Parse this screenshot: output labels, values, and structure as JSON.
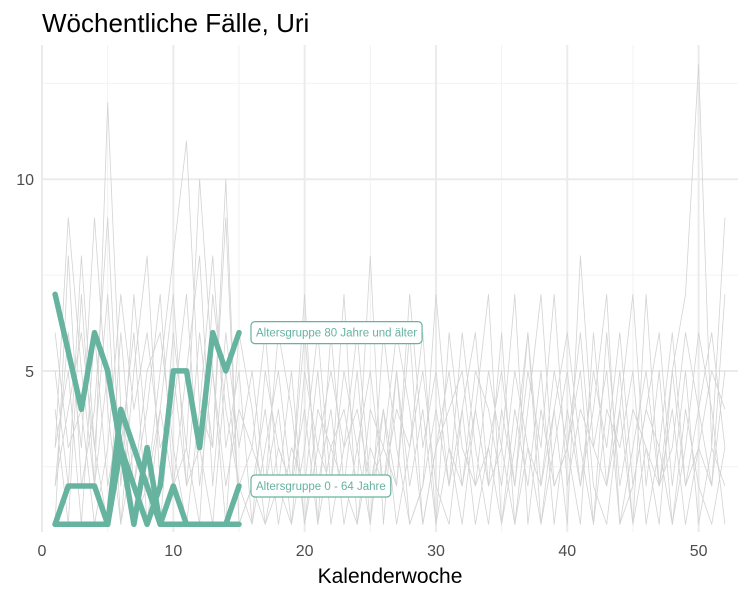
{
  "chart_data": {
    "type": "line",
    "title": "Wöchentliche Fälle, Uri",
    "xlabel": "Kalenderwoche",
    "ylabel": "",
    "xlim": [
      0,
      53
    ],
    "ylim": [
      0.8,
      13.5
    ],
    "x_ticks": [
      0,
      10,
      20,
      30,
      40,
      50
    ],
    "y_ticks": [
      5,
      10
    ],
    "grid": true,
    "background_color": "#d3d3d3",
    "highlight_color": "#66b3a0",
    "background_series": [
      {
        "x": [
          1,
          2,
          3,
          4,
          5,
          6,
          7,
          8,
          9,
          10,
          11,
          12,
          13,
          14,
          15,
          16,
          17,
          18,
          19,
          20,
          21,
          22,
          23,
          24,
          25,
          26,
          27,
          28,
          29,
          30,
          31,
          32,
          33,
          34,
          35,
          36,
          37,
          38,
          39,
          40,
          41,
          42,
          43,
          44,
          45,
          46,
          47,
          48,
          49,
          50,
          51,
          52
        ],
        "values": [
          3,
          9,
          5,
          2,
          12,
          4,
          1,
          2,
          5,
          8,
          11,
          4,
          3,
          10,
          1,
          2,
          1,
          3,
          2,
          4,
          1,
          6,
          2,
          1,
          3,
          2,
          5,
          1,
          2,
          7,
          3,
          1,
          4,
          2,
          6,
          1,
          3,
          2,
          5,
          3,
          1,
          6,
          2,
          4,
          1,
          3,
          2,
          5,
          7,
          13,
          3,
          9
        ]
      },
      {
        "x": [
          1,
          2,
          3,
          4,
          5,
          6,
          7,
          8,
          9,
          10,
          11,
          12,
          13,
          14,
          15,
          16,
          17,
          18,
          19,
          20,
          21,
          22,
          23,
          24,
          25,
          26,
          27,
          28,
          29,
          30,
          31,
          32,
          33,
          34,
          35,
          36,
          37,
          38,
          39,
          40,
          41,
          42,
          43,
          44,
          45,
          46,
          47,
          48,
          49,
          50,
          51,
          52
        ],
        "values": [
          5,
          2,
          8,
          3,
          1,
          6,
          2,
          4,
          7,
          2,
          3,
          10,
          5,
          2,
          4,
          3,
          6,
          2,
          1,
          5,
          3,
          2,
          7,
          1,
          4,
          3,
          2,
          6,
          1,
          3,
          5,
          2,
          4,
          7,
          1,
          3,
          6,
          2,
          4,
          1,
          8,
          3,
          2,
          5,
          1,
          7,
          2,
          3,
          6,
          4,
          2,
          5
        ]
      },
      {
        "x": [
          1,
          2,
          3,
          4,
          5,
          6,
          7,
          8,
          9,
          10,
          11,
          12,
          13,
          14,
          15,
          16,
          17,
          18,
          19,
          20,
          21,
          22,
          23,
          24,
          25,
          26,
          27,
          28,
          29,
          30,
          31,
          32,
          33,
          34,
          35,
          36,
          37,
          38,
          39,
          40,
          41,
          42,
          43,
          44,
          45,
          46,
          47,
          48,
          49,
          50,
          51,
          52
        ],
        "values": [
          2,
          6,
          3,
          9,
          4,
          1,
          5,
          8,
          2,
          6,
          3,
          1,
          7,
          4,
          2,
          1,
          3,
          5,
          2,
          7,
          1,
          3,
          4,
          2,
          8,
          1,
          5,
          2,
          4,
          1,
          6,
          3,
          2,
          5,
          3,
          1,
          4,
          7,
          2,
          3,
          5,
          1,
          6,
          2,
          4,
          3,
          1,
          5,
          2,
          4,
          6,
          3
        ]
      },
      {
        "x": [
          1,
          2,
          3,
          4,
          5,
          6,
          7,
          8,
          9,
          10,
          11,
          12,
          13,
          14,
          15,
          16,
          17,
          18,
          19,
          20,
          21,
          22,
          23,
          24,
          25,
          26,
          27,
          28,
          29,
          30,
          31,
          32,
          33,
          34,
          35,
          36,
          37,
          38,
          39,
          40,
          41,
          42,
          43,
          44,
          45,
          46,
          47,
          48,
          49,
          50,
          51,
          52
        ],
        "values": [
          4,
          1,
          7,
          2,
          5,
          3,
          6,
          1,
          4,
          2,
          5,
          8,
          2,
          6,
          3,
          5,
          2,
          4,
          1,
          3,
          6,
          2,
          5,
          3,
          1,
          4,
          2,
          7,
          3,
          5,
          2,
          4,
          1,
          3,
          5,
          2,
          6,
          1,
          3,
          5,
          2,
          4,
          7,
          1,
          3,
          5,
          2,
          4,
          1,
          3,
          2,
          7
        ]
      },
      {
        "x": [
          1,
          2,
          3,
          4,
          5,
          6,
          7,
          8,
          9,
          10,
          11,
          12,
          13,
          14,
          15,
          16,
          17,
          18,
          19,
          20,
          21,
          22,
          23,
          24,
          25,
          26,
          27,
          28,
          29,
          30,
          31,
          32,
          33,
          34,
          35,
          36,
          37,
          38,
          39,
          40,
          41,
          42,
          43,
          44,
          45,
          46,
          47,
          48,
          49,
          50,
          51,
          52
        ],
        "values": [
          1,
          8,
          2,
          4,
          9,
          2,
          7,
          3,
          1,
          5,
          2,
          6,
          3,
          9,
          1,
          2,
          4,
          1,
          3,
          2,
          5,
          1,
          3,
          6,
          2,
          4,
          1,
          3,
          5,
          2,
          1,
          4,
          6,
          2,
          3,
          7,
          1,
          4,
          2,
          3,
          6,
          2,
          1,
          4,
          7,
          2,
          5,
          1,
          3,
          6,
          4,
          1
        ]
      },
      {
        "x": [
          1,
          2,
          3,
          4,
          5,
          6,
          7,
          8,
          9,
          10,
          11,
          12,
          13,
          14,
          15,
          16,
          17,
          18,
          19,
          20,
          21,
          22,
          23,
          24,
          25,
          26,
          27,
          28,
          29,
          30,
          31,
          32,
          33,
          34,
          35,
          36,
          37,
          38,
          39,
          40,
          41,
          42,
          43,
          44,
          45,
          46,
          47,
          48,
          49,
          50,
          51,
          52
        ],
        "values": [
          6,
          3,
          4,
          1,
          3,
          7,
          4,
          6,
          3,
          4,
          7,
          2,
          5,
          1,
          6,
          4,
          1,
          2,
          5,
          1,
          4,
          3,
          2,
          5,
          1,
          6,
          3,
          1,
          2,
          4,
          2,
          6,
          3,
          1,
          4,
          2,
          5,
          3,
          7,
          2,
          4,
          3,
          5,
          1,
          2,
          4,
          6,
          2,
          5,
          1,
          3,
          2
        ]
      },
      {
        "x": [
          1,
          2,
          3,
          4,
          5,
          6,
          7,
          8,
          9,
          10,
          11,
          12,
          13,
          14,
          15,
          16,
          17,
          18,
          19,
          20,
          21,
          22,
          23,
          24,
          25,
          26,
          27,
          28,
          29,
          30,
          31,
          32,
          33,
          34,
          35,
          36,
          37,
          38,
          39,
          40,
          41,
          42,
          43,
          44,
          45,
          46,
          47,
          48,
          49,
          50,
          51,
          52
        ],
        "values": [
          3,
          5,
          1,
          6,
          2,
          4,
          2,
          5,
          6,
          3,
          1,
          4,
          8,
          3,
          5,
          1,
          5,
          3,
          2,
          6,
          2,
          4,
          1,
          3,
          5,
          2,
          4,
          3,
          6,
          1,
          3,
          2,
          5,
          4,
          2,
          5,
          3,
          1,
          4,
          6,
          3,
          1,
          4,
          3,
          5,
          1,
          3,
          6,
          2,
          3,
          5,
          4
        ]
      },
      {
        "x": [
          1,
          2,
          3,
          4,
          5,
          6,
          7,
          8,
          9,
          10,
          11,
          12,
          13,
          14,
          15,
          16,
          17,
          18,
          19,
          20,
          21,
          22,
          23,
          24,
          25,
          26,
          27,
          28,
          29,
          30,
          31,
          32,
          33,
          34,
          35,
          36,
          37,
          38,
          39,
          40,
          41,
          42,
          43,
          44,
          45,
          46,
          47,
          48,
          49,
          50,
          51,
          52
        ],
        "values": [
          2,
          4,
          6,
          3,
          7,
          1,
          3,
          2,
          4,
          7,
          2,
          3,
          1,
          5,
          2,
          3,
          2,
          6,
          4,
          1,
          3,
          5,
          3,
          4,
          2,
          3,
          6,
          4,
          1,
          3,
          4,
          5,
          2,
          3,
          1,
          4,
          2,
          5,
          1,
          4,
          2,
          5,
          3,
          6,
          2,
          4,
          3,
          1,
          4,
          2,
          1,
          3
        ]
      }
    ],
    "highlighted_series": [
      {
        "name": "Altersgruppe 80 Jahre und älter",
        "x": [
          1,
          2,
          3,
          4,
          5,
          6,
          7,
          8,
          9,
          10,
          11,
          12,
          13,
          14,
          15
        ],
        "values": [
          7,
          5.5,
          4,
          6,
          5,
          3,
          2,
          1,
          2,
          5,
          5,
          3,
          6,
          5,
          6
        ]
      },
      {
        "name": "Altersgruppe 0 - 64 Jahre",
        "x": [
          1,
          2,
          3,
          4,
          5,
          6,
          7,
          8,
          9,
          10,
          11,
          12,
          13,
          14,
          15
        ],
        "values": [
          1,
          2,
          2,
          2,
          1,
          4,
          3,
          2,
          1,
          2,
          1,
          1,
          1,
          1,
          2
        ]
      },
      {
        "name": "",
        "x": [
          1,
          2,
          3,
          4,
          5,
          6,
          7,
          8,
          9,
          10,
          11,
          12,
          13,
          14,
          15
        ],
        "values": [
          1,
          1,
          1,
          1,
          1,
          3,
          1,
          3,
          1,
          1,
          1,
          1,
          1,
          1,
          1
        ]
      }
    ]
  }
}
